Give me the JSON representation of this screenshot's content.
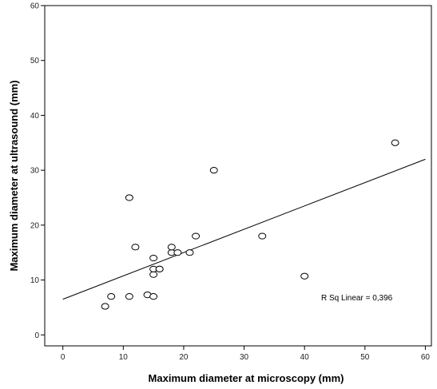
{
  "chart_data": {
    "type": "scatter",
    "xlabel": "Maximum diameter at microscopy (mm)",
    "ylabel": "Maximum diameter at ultrasound (mm)",
    "xlim": [
      -3,
      61
    ],
    "ylim": [
      -2,
      60
    ],
    "x_ticks": [
      0,
      10,
      20,
      30,
      40,
      50,
      60
    ],
    "y_ticks": [
      0,
      10,
      20,
      30,
      40,
      50,
      60
    ],
    "grid": false,
    "points": [
      {
        "x": 7,
        "y": 5.2
      },
      {
        "x": 8,
        "y": 7
      },
      {
        "x": 11,
        "y": 7
      },
      {
        "x": 11,
        "y": 25
      },
      {
        "x": 12,
        "y": 16
      },
      {
        "x": 14,
        "y": 7.3
      },
      {
        "x": 15,
        "y": 7
      },
      {
        "x": 15,
        "y": 11
      },
      {
        "x": 15,
        "y": 12
      },
      {
        "x": 15,
        "y": 14
      },
      {
        "x": 16,
        "y": 12
      },
      {
        "x": 16,
        "y": 12
      },
      {
        "x": 18,
        "y": 15
      },
      {
        "x": 18,
        "y": 16
      },
      {
        "x": 19,
        "y": 15
      },
      {
        "x": 21,
        "y": 15
      },
      {
        "x": 22,
        "y": 18
      },
      {
        "x": 25,
        "y": 30
      },
      {
        "x": 33,
        "y": 18
      },
      {
        "x": 40,
        "y": 10.7
      },
      {
        "x": 55,
        "y": 35
      }
    ],
    "fit_line": {
      "x": [
        0,
        60
      ],
      "y": [
        6.5,
        32
      ]
    },
    "annotation": "R Sq Linear = 0,396"
  }
}
